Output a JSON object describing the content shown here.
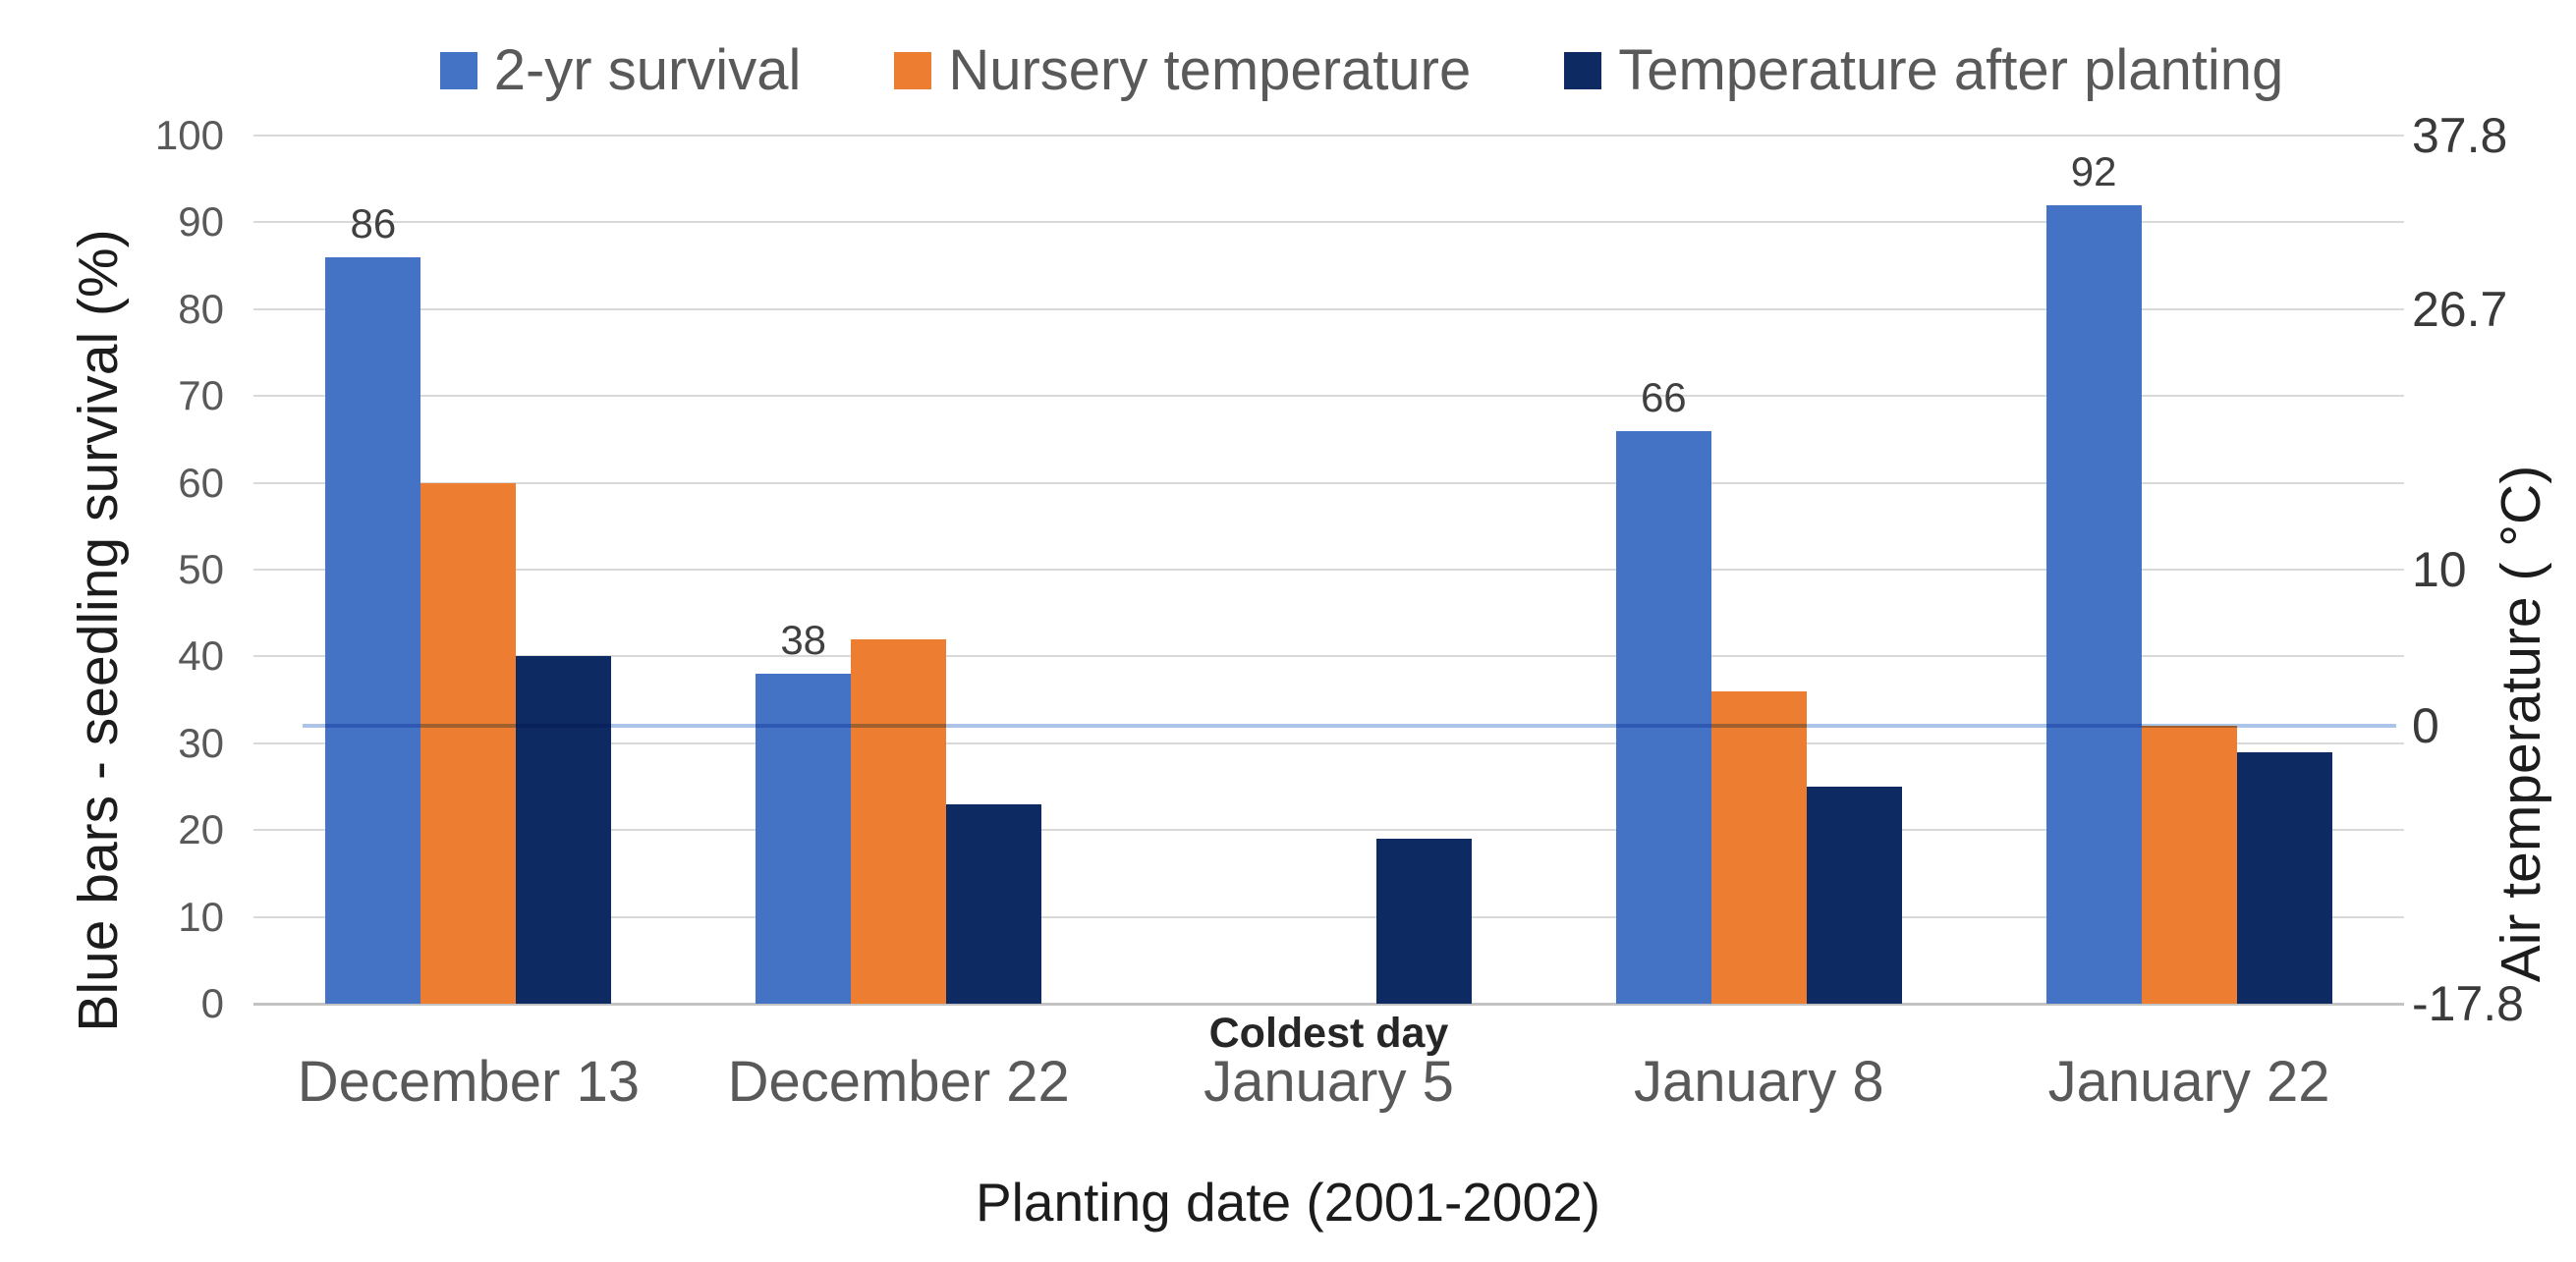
{
  "chart_data": {
    "type": "bar",
    "title": "",
    "categories": [
      "December 13",
      "December 22",
      "January 5",
      "January 8",
      "January 22"
    ],
    "series": [
      {
        "name": "2-yr survival",
        "color": "#4472C4",
        "values": [
          86,
          38,
          null,
          66,
          92
        ],
        "show_data_labels": true
      },
      {
        "name": "Nursery temperature",
        "color": "#ED7D31",
        "values": [
          60,
          42,
          null,
          36,
          32
        ],
        "show_data_labels": false
      },
      {
        "name": "Temperature after planting",
        "color": "#0D2A63",
        "values": [
          40,
          23,
          19,
          25,
          29
        ],
        "show_data_labels": false
      }
    ],
    "left_axis": {
      "title": "Blue bars - seedling survival (%)",
      "ticks": [
        0,
        10,
        20,
        30,
        40,
        50,
        60,
        70,
        80,
        90,
        100
      ],
      "range": [
        0,
        100
      ]
    },
    "right_axis": {
      "title": "Air temperature ( °C)",
      "ticks": [
        {
          "label": "37.8",
          "position": 100
        },
        {
          "label": "26.7",
          "position": 80
        },
        {
          "label": "10",
          "position": 50
        },
        {
          "label": "0",
          "position": 32
        },
        {
          "label": "-17.8",
          "position": 0
        }
      ]
    },
    "xlabel": "Planting date (2001-2002)",
    "annotations": [
      {
        "text": "Coldest day",
        "category_index": 2
      }
    ],
    "reference_line": {
      "position": 32,
      "right_axis_value": "0",
      "color": "#ABC4E8"
    },
    "legend_position": "top",
    "grid": true
  },
  "colors": {
    "gridline": "#D9D9D9",
    "baseline": "#C3C3C3",
    "tick_text": "#595959",
    "right_tick_text": "#3A3A3A",
    "title_text": "#1C1C1C",
    "data_label_text": "#404040"
  }
}
